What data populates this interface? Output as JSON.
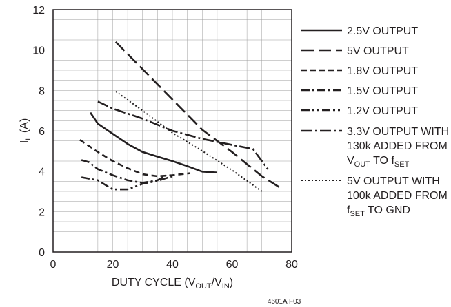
{
  "chart_data": {
    "type": "line",
    "xlabel": "DUTY CYCLE (V",
    "xlabel_sub1": "OUT",
    "xlabel_mid": "/V",
    "xlabel_sub2": "IN",
    "xlabel_end": ")",
    "ylabel": "I",
    "ylabel_sub": "L",
    "ylabel_end": " (A)",
    "xlim": [
      0,
      80
    ],
    "ylim": [
      0,
      12
    ],
    "xticks": [
      0,
      20,
      40,
      60,
      80
    ],
    "yticks": [
      0,
      2,
      4,
      6,
      8,
      10,
      12
    ],
    "figure_ref": "4601A F03",
    "grid": true,
    "legend_position": "right",
    "series": [
      {
        "name": "2.5V OUTPUT",
        "style": "solid",
        "legend_lines": [
          [
            {
              "t": "2.5V OUTPUT"
            }
          ]
        ],
        "points": [
          [
            12.5,
            6.9
          ],
          [
            15,
            6.35
          ],
          [
            20,
            5.85
          ],
          [
            25,
            5.35
          ],
          [
            30,
            4.95
          ],
          [
            35,
            4.72
          ],
          [
            40,
            4.5
          ],
          [
            45,
            4.25
          ],
          [
            50,
            3.98
          ],
          [
            55,
            3.93
          ]
        ]
      },
      {
        "name": "5V OUTPUT",
        "style": "longdash",
        "legend_lines": [
          [
            {
              "t": "5V OUTPUT"
            }
          ]
        ],
        "points": [
          [
            21,
            10.4
          ],
          [
            30,
            9.05
          ],
          [
            40,
            7.55
          ],
          [
            50,
            6.05
          ],
          [
            60,
            4.95
          ],
          [
            70,
            3.75
          ],
          [
            77,
            3.1
          ]
        ]
      },
      {
        "name": "1.8V OUTPUT",
        "style": "dash",
        "legend_lines": [
          [
            {
              "t": "1.8V OUTPUT"
            }
          ]
        ],
        "points": [
          [
            9,
            5.55
          ],
          [
            15,
            4.95
          ],
          [
            20,
            4.5
          ],
          [
            25,
            4.15
          ],
          [
            30,
            3.85
          ],
          [
            35,
            3.75
          ],
          [
            40,
            3.8
          ],
          [
            46,
            3.9
          ]
        ]
      },
      {
        "name": "1.5V OUTPUT",
        "style": "dashdot",
        "legend_lines": [
          [
            {
              "t": "1.5V OUTPUT"
            }
          ]
        ],
        "points": [
          [
            9.5,
            4.55
          ],
          [
            12,
            4.45
          ],
          [
            15,
            4.1
          ],
          [
            20,
            3.8
          ],
          [
            25,
            3.55
          ],
          [
            30,
            3.42
          ],
          [
            35,
            3.55
          ],
          [
            38,
            3.8
          ]
        ]
      },
      {
        "name": "1.2V OUTPUT",
        "style": "dashdotdot",
        "legend_lines": [
          [
            {
              "t": "1.2V OUTPUT"
            }
          ]
        ],
        "points": [
          [
            9.5,
            3.7
          ],
          [
            15,
            3.55
          ],
          [
            20,
            3.1
          ],
          [
            25,
            3.1
          ],
          [
            30,
            3.38
          ],
          [
            35,
            3.52
          ],
          [
            40,
            3.75
          ]
        ]
      },
      {
        "name": "3.3V OUTPUT WITH 130k ADDED FROM VOUT TO fSET",
        "style": "longdot",
        "legend_lines": [
          [
            {
              "t": "3.3V OUTPUT WITH"
            }
          ],
          [
            {
              "t": "130k ADDED FROM"
            }
          ],
          [
            {
              "t": "V"
            },
            {
              "t": "OUT",
              "sub": true
            },
            {
              "t": " TO f"
            },
            {
              "t": "SET",
              "sub": true
            }
          ]
        ],
        "points": [
          [
            15,
            7.45
          ],
          [
            20,
            7.1
          ],
          [
            30,
            6.6
          ],
          [
            40,
            6.0
          ],
          [
            50,
            5.6
          ],
          [
            60,
            5.3
          ],
          [
            67,
            5.1
          ],
          [
            72,
            4.1
          ]
        ]
      },
      {
        "name": "5V OUTPUT WITH 100k ADDED FROM fSET TO GND",
        "style": "dotted",
        "legend_lines": [
          [
            {
              "t": "5V OUTPUT WITH"
            }
          ],
          [
            {
              "t": "100k ADDED FROM"
            }
          ],
          [
            {
              "t": "f"
            },
            {
              "t": "SET",
              "sub": true
            },
            {
              "t": " TO GND"
            }
          ]
        ],
        "points": [
          [
            21,
            7.95
          ],
          [
            30,
            7.0
          ],
          [
            40,
            5.9
          ],
          [
            50,
            5.0
          ],
          [
            60,
            4.05
          ],
          [
            70,
            3.0
          ]
        ]
      }
    ]
  }
}
